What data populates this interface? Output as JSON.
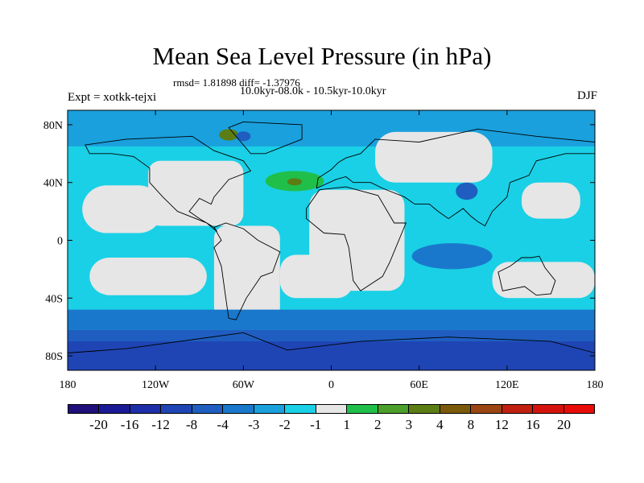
{
  "chart_data": {
    "type": "heatmap",
    "title": "Mean Sea Level Pressure (in hPa)",
    "stats_text": "rmsd= 1.81898 diff= -1.37976",
    "period_text": "10.0kyr-08.0k - 10.5kyr-10.0kyr",
    "experiment_label": "Expt = xotkk-tejxi",
    "season_label": "DJF",
    "x_ticks": [
      "180",
      "120W",
      "60W",
      "0",
      "60E",
      "120E",
      "180"
    ],
    "y_ticks": [
      "80N",
      "40N",
      "0",
      "40S",
      "80S"
    ],
    "xlim": [
      -180,
      180
    ],
    "ylim": [
      -90,
      90
    ],
    "colorbar": {
      "labels": [
        "-20",
        "-16",
        "-12",
        "-8",
        "-4",
        "-3",
        "-2",
        "-1",
        "1",
        "2",
        "3",
        "4",
        "8",
        "12",
        "16",
        "20"
      ],
      "colors": [
        "#1f0f7a",
        "#1a1a96",
        "#1d2fa8",
        "#1f45b4",
        "#1f5ec0",
        "#1a78cc",
        "#1aa0dd",
        "#1ad0e6",
        "#e6e6e6",
        "#1fbf4a",
        "#4b9f2a",
        "#5b7d14",
        "#7a5a0a",
        "#9a4512",
        "#c02010",
        "#d4140c",
        "#e80c08"
      ]
    },
    "regions": [
      {
        "name": "southern-ocean-belt",
        "lon": [
          -180,
          180
        ],
        "lat": [
          -90,
          -55
        ],
        "value": -6
      },
      {
        "name": "antarctic-margin",
        "lon": [
          -180,
          180
        ],
        "lat": [
          -62,
          -52
        ],
        "value": -3.5
      },
      {
        "name": "tropical-indian-ocean",
        "lon": [
          55,
          110
        ],
        "lat": [
          -20,
          -2
        ],
        "value": -3.5
      },
      {
        "name": "central-atlantic-high",
        "lon": [
          -45,
          -5
        ],
        "lat": [
          34,
          48
        ],
        "value": 1.5
      },
      {
        "name": "east-asia-low",
        "lon": [
          85,
          100
        ],
        "lat": [
          28,
          40
        ],
        "value": -5
      },
      {
        "name": "north-atlantic-core",
        "lon": [
          -30,
          -20
        ],
        "lat": [
          38,
          43
        ],
        "value": 3.5
      }
    ]
  }
}
